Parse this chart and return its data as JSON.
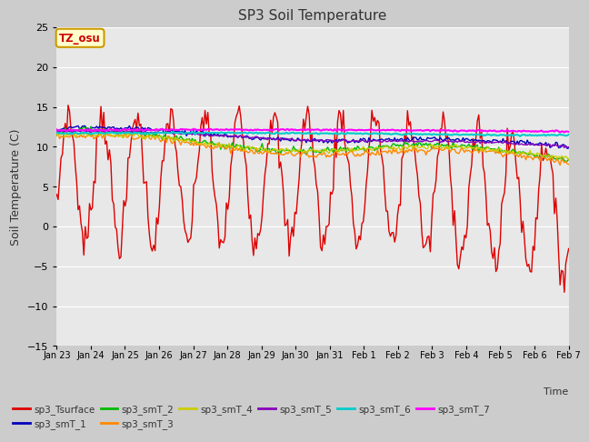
{
  "title": "SP3 Soil Temperature",
  "ylabel": "Soil Temperature (C)",
  "xlabel": "Time",
  "annotation": "TZ_osu",
  "ylim": [
    -15,
    25
  ],
  "fig_facecolor": "#cccccc",
  "plot_bg_color": "#e8e8e8",
  "series_order": [
    "sp3_Tsurface",
    "sp3_smT_1",
    "sp3_smT_2",
    "sp3_smT_3",
    "sp3_smT_4",
    "sp3_smT_5",
    "sp3_smT_6",
    "sp3_smT_7"
  ],
  "series": {
    "sp3_Tsurface": {
      "color": "#dd0000",
      "lw": 1.0
    },
    "sp3_smT_1": {
      "color": "#0000bb",
      "lw": 1.0
    },
    "sp3_smT_2": {
      "color": "#00bb00",
      "lw": 1.0
    },
    "sp3_smT_3": {
      "color": "#ff8800",
      "lw": 1.0
    },
    "sp3_smT_4": {
      "color": "#cccc00",
      "lw": 1.0
    },
    "sp3_smT_5": {
      "color": "#8800bb",
      "lw": 1.0
    },
    "sp3_smT_6": {
      "color": "#00cccc",
      "lw": 1.5
    },
    "sp3_smT_7": {
      "color": "#ff00ff",
      "lw": 1.5
    }
  },
  "xtick_labels": [
    "Jan 23",
    "Jan 24",
    "Jan 25",
    "Jan 26",
    "Jan 27",
    "Jan 28",
    "Jan 29",
    "Jan 30",
    "Jan 31",
    "Feb 1",
    "Feb 2",
    "Feb 3",
    "Feb 4",
    "Feb 5",
    "Feb 6",
    "Feb 7"
  ],
  "yticks": [
    -15,
    -10,
    -5,
    0,
    5,
    10,
    15,
    20,
    25
  ],
  "annotation_box_facecolor": "#ffffcc",
  "annotation_box_edgecolor": "#cc9900",
  "annotation_text_color": "#cc0000",
  "grid_color": "#ffffff",
  "legend_row1": [
    "sp3_Tsurface",
    "sp3_smT_1",
    "sp3_smT_2",
    "sp3_smT_3",
    "sp3_smT_4",
    "sp3_smT_5"
  ],
  "legend_row2": [
    "sp3_smT_6",
    "sp3_smT_7"
  ]
}
